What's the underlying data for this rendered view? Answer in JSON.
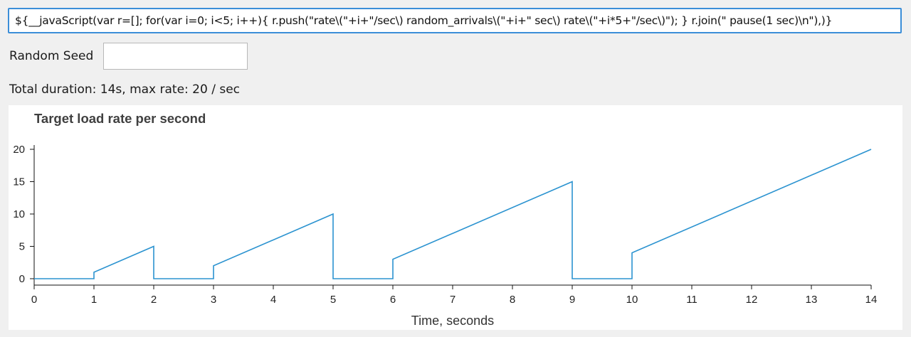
{
  "expression": {
    "value": "${__javaScript(var r=[]; for(var i=0; i<5; i++){ r.push(\"rate\\(\"+i+\"/sec\\) random_arrivals\\(\"+i+\" sec\\) rate\\(\"+i*5+\"/sec\\)\"); } r.join(\" pause(1 sec)\\n\"),)}"
  },
  "seed": {
    "label": "Random Seed",
    "value": ""
  },
  "summary": {
    "text": "Total duration: 14s, max rate: 20 / sec"
  },
  "colors": {
    "series": "#2b93d0",
    "focus_border": "#3b8ed8"
  },
  "chart_data": {
    "type": "line",
    "title": "Target load rate per second",
    "xlabel": "Time, seconds",
    "ylabel": "",
    "xlim": [
      0,
      14
    ],
    "ylim": [
      0,
      20
    ],
    "x_ticks": [
      0,
      1,
      2,
      3,
      4,
      5,
      6,
      7,
      8,
      9,
      10,
      11,
      12,
      13,
      14
    ],
    "y_ticks": [
      0,
      5,
      10,
      15,
      20
    ],
    "grid": false,
    "series": [
      {
        "points": [
          [
            0,
            0
          ],
          [
            1,
            0
          ],
          [
            1,
            1
          ],
          [
            2,
            5
          ],
          [
            2,
            0
          ],
          [
            3,
            0
          ],
          [
            3,
            2
          ],
          [
            5,
            10
          ],
          [
            5,
            0
          ],
          [
            6,
            0
          ],
          [
            6,
            3
          ],
          [
            9,
            15
          ],
          [
            9,
            0
          ],
          [
            10,
            0
          ],
          [
            10,
            4
          ],
          [
            14,
            20
          ]
        ]
      }
    ]
  }
}
